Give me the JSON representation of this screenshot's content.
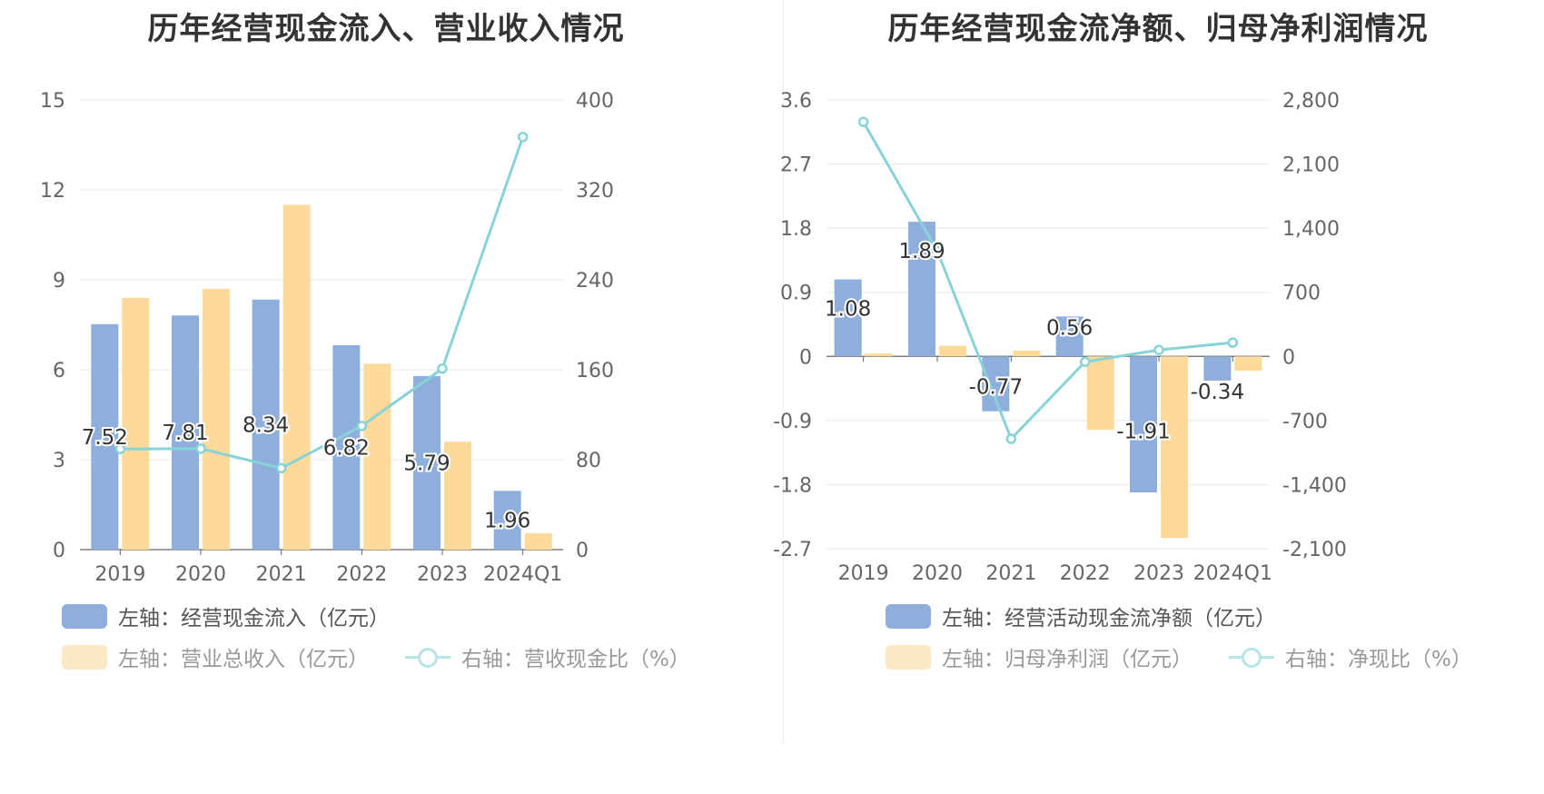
{
  "chart_data": [
    {
      "type": "bar",
      "title": "历年经营现金流入、营业收入情况",
      "categories": [
        "2019",
        "2020",
        "2021",
        "2022",
        "2023",
        "2024Q1"
      ],
      "left_axis": {
        "ylim": [
          0,
          15
        ],
        "ticks": [
          "0",
          "3",
          "6",
          "9",
          "12",
          "15"
        ]
      },
      "right_axis": {
        "ylim": [
          0,
          400
        ],
        "ticks": [
          "0",
          "80",
          "160",
          "240",
          "320",
          "400"
        ]
      },
      "series": [
        {
          "name": "左轴：经营现金流入（亿元）",
          "kind": "bar",
          "axis": "left",
          "color": "#8eaedc",
          "values": [
            7.52,
            7.81,
            8.34,
            6.82,
            5.79,
            1.96
          ],
          "labels": [
            "7.52",
            "7.81",
            "8.34",
            "6.82",
            "5.79",
            "1.96"
          ]
        },
        {
          "name": "左轴：营业总收入（亿元）",
          "kind": "bar",
          "axis": "left",
          "color": "#fdd99a",
          "values": [
            8.4,
            8.7,
            11.5,
            6.2,
            3.6,
            0.55
          ]
        },
        {
          "name": "右轴：营收现金比（%）",
          "kind": "line",
          "axis": "right",
          "color": "#88d3d8",
          "values": [
            89.5,
            89.8,
            72.5,
            110,
            161,
            367
          ]
        }
      ],
      "grid": true,
      "legend_position": "bottom"
    },
    {
      "type": "bar",
      "title": "历年经营现金流净额、归母净利润情况",
      "categories": [
        "2019",
        "2020",
        "2021",
        "2022",
        "2023",
        "2024Q1"
      ],
      "left_axis": {
        "ylim": [
          -2.7,
          3.6
        ],
        "ticks": [
          "-2.7",
          "-1.8",
          "-0.9",
          "0",
          "0.9",
          "1.8",
          "2.7",
          "3.6"
        ]
      },
      "right_axis": {
        "ylim": [
          -2100,
          2800
        ],
        "ticks": [
          "-2,100",
          "-1,400",
          "-700",
          "0",
          "700",
          "1,400",
          "2,100",
          "2,800"
        ]
      },
      "series": [
        {
          "name": "左轴：经营活动现金流净额（亿元）",
          "kind": "bar",
          "axis": "left",
          "color": "#8eaedc",
          "values": [
            1.08,
            1.89,
            -0.77,
            0.56,
            -1.91,
            -0.34
          ],
          "labels": [
            "1.08",
            "1.89",
            "-0.77",
            "0.56",
            "-1.91",
            "-0.34"
          ]
        },
        {
          "name": "左轴：归母净利润（亿元）",
          "kind": "bar",
          "axis": "left",
          "color": "#fdd99a",
          "values": [
            0.04,
            0.15,
            0.08,
            -1.03,
            -2.55,
            -0.2
          ]
        },
        {
          "name": "右轴：净现比（%）",
          "kind": "line",
          "axis": "right",
          "color": "#88d3d8",
          "values": [
            2560,
            1150,
            -900,
            -60,
            70,
            150
          ]
        }
      ],
      "grid": true,
      "legend_position": "bottom"
    }
  ]
}
